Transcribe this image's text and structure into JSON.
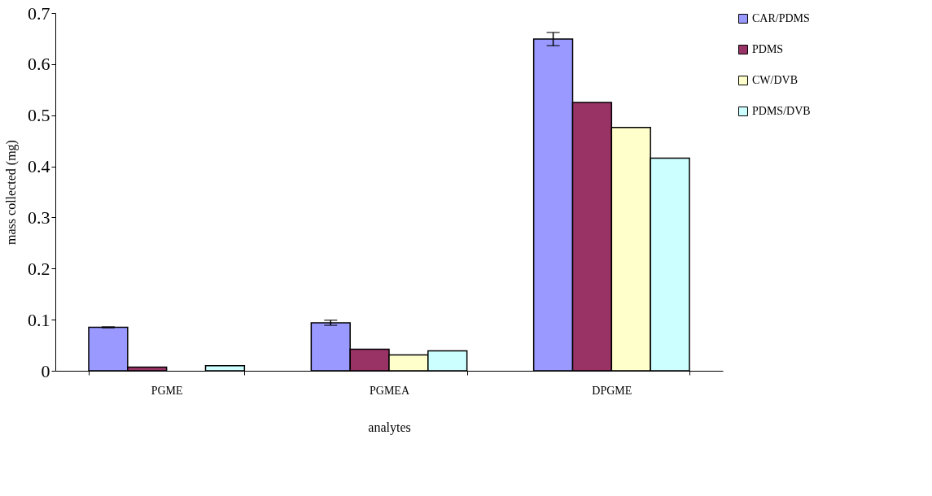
{
  "chart_data": {
    "type": "bar",
    "xlabel": "analytes",
    "ylabel": "mass collected (mg)",
    "categories": [
      "PGME",
      "PGMEA",
      "DPGME"
    ],
    "series": [
      {
        "name": "CAR/PDMS",
        "color": "#9999ff",
        "values": [
          0.085,
          0.094,
          0.649
        ],
        "errors": [
          0.001,
          0.005,
          0.013
        ]
      },
      {
        "name": "PDMS",
        "color": "#993366",
        "values": [
          0.007,
          0.042,
          0.525
        ]
      },
      {
        "name": "CW/DVB",
        "color": "#ffffcc",
        "values": [
          null,
          0.031,
          0.476
        ]
      },
      {
        "name": "PDMS/DVB",
        "color": "#ccffff",
        "values": [
          0.01,
          0.039,
          0.416
        ]
      }
    ],
    "ylim": [
      0,
      0.7
    ],
    "yticks": [
      0,
      0.1,
      0.2,
      0.3,
      0.4,
      0.5,
      0.6,
      0.7
    ],
    "grid": false,
    "legend": "right"
  }
}
